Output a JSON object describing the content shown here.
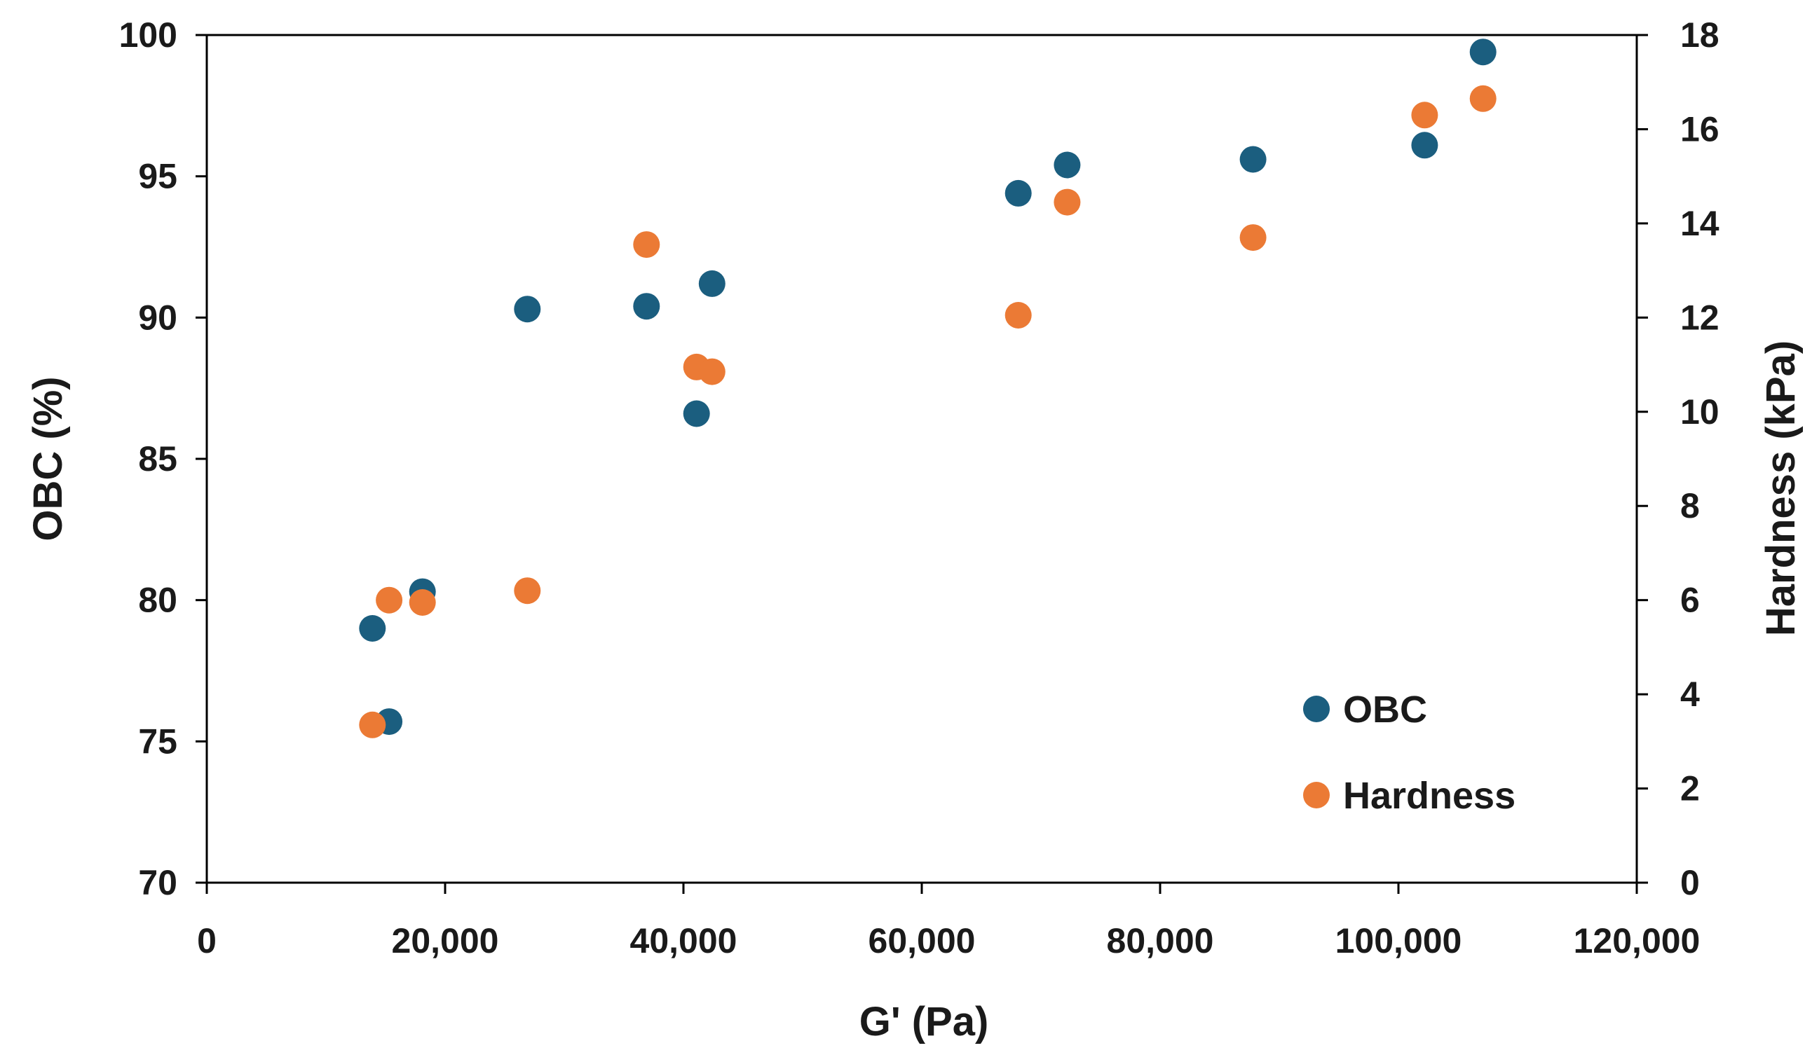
{
  "chart_data": {
    "type": "scatter",
    "title": "",
    "xlabel": "G' (Pa)",
    "ylabel": "OBC (%)",
    "y2label": "Hardness (kPa)",
    "xlim": [
      0,
      120000
    ],
    "ylim": [
      70,
      100
    ],
    "y2lim": [
      0,
      18
    ],
    "grid": false,
    "legend_position": "bottom-right",
    "x_ticks": [
      0,
      20000,
      40000,
      60000,
      80000,
      100000,
      120000
    ],
    "x_tick_labels": [
      "0",
      "20,000",
      "40,000",
      "60,000",
      "80,000",
      "100,000",
      "120,000"
    ],
    "y_ticks": [
      70,
      75,
      80,
      85,
      90,
      95,
      100
    ],
    "y_tick_labels": [
      "70",
      "75",
      "80",
      "85",
      "90",
      "95",
      "100"
    ],
    "y2_ticks": [
      0,
      2,
      4,
      6,
      8,
      10,
      12,
      14,
      16,
      18
    ],
    "y2_tick_labels": [
      "0",
      "2",
      "4",
      "6",
      "8",
      "10",
      "12",
      "14",
      "16",
      "18"
    ],
    "series": [
      {
        "name": "OBC",
        "axis": "left",
        "color": "#1b5e7f",
        "points": [
          {
            "x": 13900,
            "y": 79.0
          },
          {
            "x": 15300,
            "y": 75.7
          },
          {
            "x": 18100,
            "y": 80.3
          },
          {
            "x": 26900,
            "y": 90.3
          },
          {
            "x": 36900,
            "y": 90.4
          },
          {
            "x": 41100,
            "y": 86.6
          },
          {
            "x": 42400,
            "y": 91.2
          },
          {
            "x": 68100,
            "y": 94.4
          },
          {
            "x": 72200,
            "y": 95.4
          },
          {
            "x": 87800,
            "y": 95.6
          },
          {
            "x": 102200,
            "y": 96.1
          },
          {
            "x": 107100,
            "y": 99.4
          }
        ]
      },
      {
        "name": "Hardness",
        "axis": "right",
        "color": "#eb7a35",
        "points": [
          {
            "x": 13900,
            "y": 3.35
          },
          {
            "x": 15300,
            "y": 6.0
          },
          {
            "x": 18100,
            "y": 5.95
          },
          {
            "x": 26900,
            "y": 6.2
          },
          {
            "x": 36900,
            "y": 13.55
          },
          {
            "x": 41100,
            "y": 10.95
          },
          {
            "x": 42400,
            "y": 10.85
          },
          {
            "x": 68100,
            "y": 12.05
          },
          {
            "x": 72200,
            "y": 14.45
          },
          {
            "x": 87800,
            "y": 13.7
          },
          {
            "x": 102200,
            "y": 16.3
          },
          {
            "x": 107100,
            "y": 16.65
          }
        ]
      }
    ]
  }
}
